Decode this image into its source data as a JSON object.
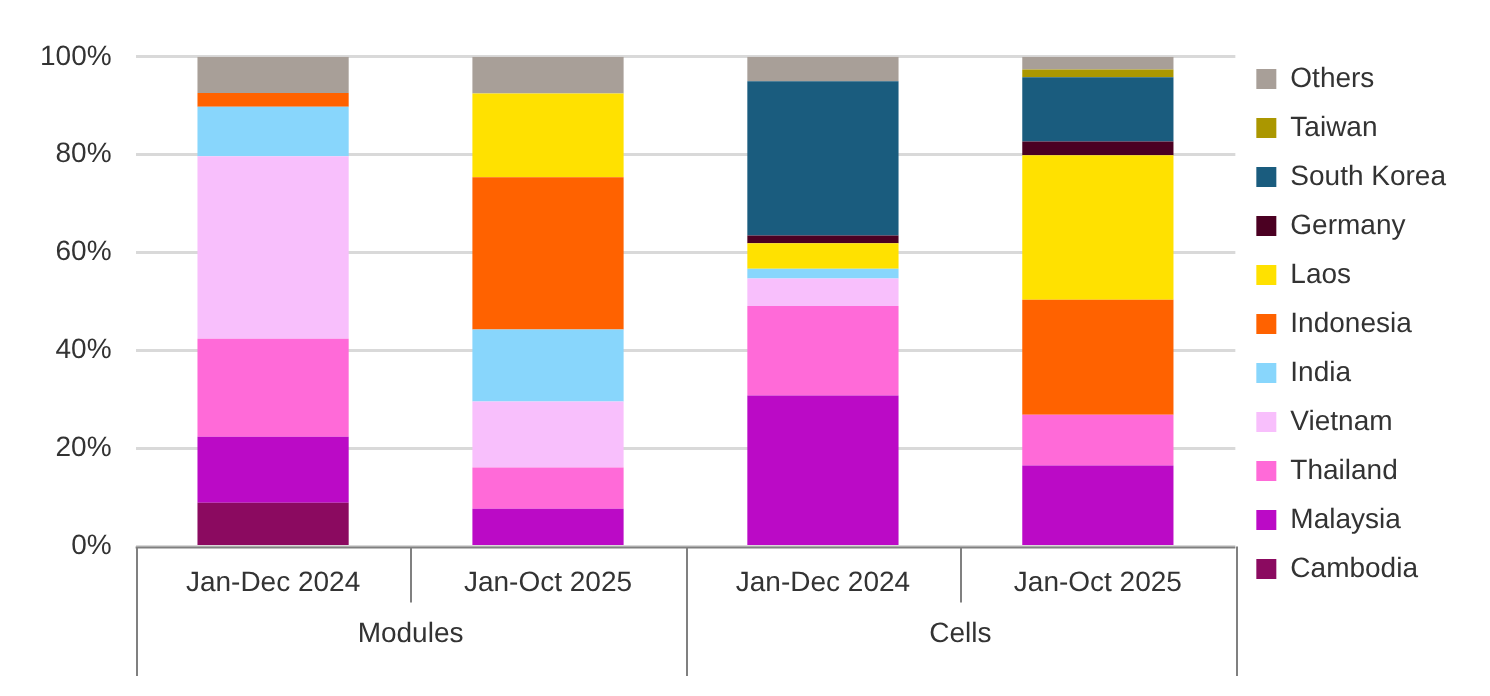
{
  "chart_data": {
    "type": "bar",
    "stacked": true,
    "categories": [
      "Jan-Dec 2024",
      "Jan-Oct 2025",
      "Jan-Dec 2024",
      "Jan-Oct 2025"
    ],
    "series": [
      {
        "name": "Cambodia",
        "color": "#8b0a60",
        "values": [
          8.9,
          0,
          0,
          0
        ]
      },
      {
        "name": "Malaysia",
        "color": "#bb0ac6",
        "values": [
          13.5,
          7.7,
          30.8,
          16.5
        ]
      },
      {
        "name": "Thailand",
        "color": "#ff6ad8",
        "values": [
          20,
          8.4,
          18.3,
          10.4
        ]
      },
      {
        "name": "Vietnam",
        "color": "#f8bffc",
        "values": [
          37.3,
          13.5,
          5.6,
          0
        ]
      },
      {
        "name": "India",
        "color": "#88d6fc",
        "values": [
          10.1,
          14.7,
          2,
          0
        ]
      },
      {
        "name": "Indonesia",
        "color": "#ff6200",
        "values": [
          2.8,
          31.1,
          0,
          23.5
        ]
      },
      {
        "name": "Laos",
        "color": "#ffe100",
        "values": [
          0,
          17.1,
          5.2,
          29.5
        ]
      },
      {
        "name": "Germany",
        "color": "#4b0022",
        "values": [
          0,
          0,
          1.6,
          2.8
        ]
      },
      {
        "name": "South Korea",
        "color": "#1a5c7e",
        "values": [
          0,
          0,
          31.5,
          13.1
        ]
      },
      {
        "name": "Taiwan",
        "color": "#ab9700",
        "values": [
          0,
          0,
          0,
          1.6
        ]
      },
      {
        "name": "Others",
        "color": "#a89f98",
        "values": [
          7.4,
          7.5,
          5,
          2.6
        ]
      }
    ],
    "ylim": [
      0,
      100
    ],
    "yticks": [
      {
        "value": 0,
        "label": "0%"
      },
      {
        "value": 20,
        "label": "20%"
      },
      {
        "value": 40,
        "label": "40%"
      },
      {
        "value": 60,
        "label": "60%"
      },
      {
        "value": 80,
        "label": "80%"
      },
      {
        "value": 100,
        "label": "100%"
      }
    ],
    "grid": "y",
    "legend": "right",
    "annotations": [
      "Modules",
      "Cells"
    ]
  }
}
